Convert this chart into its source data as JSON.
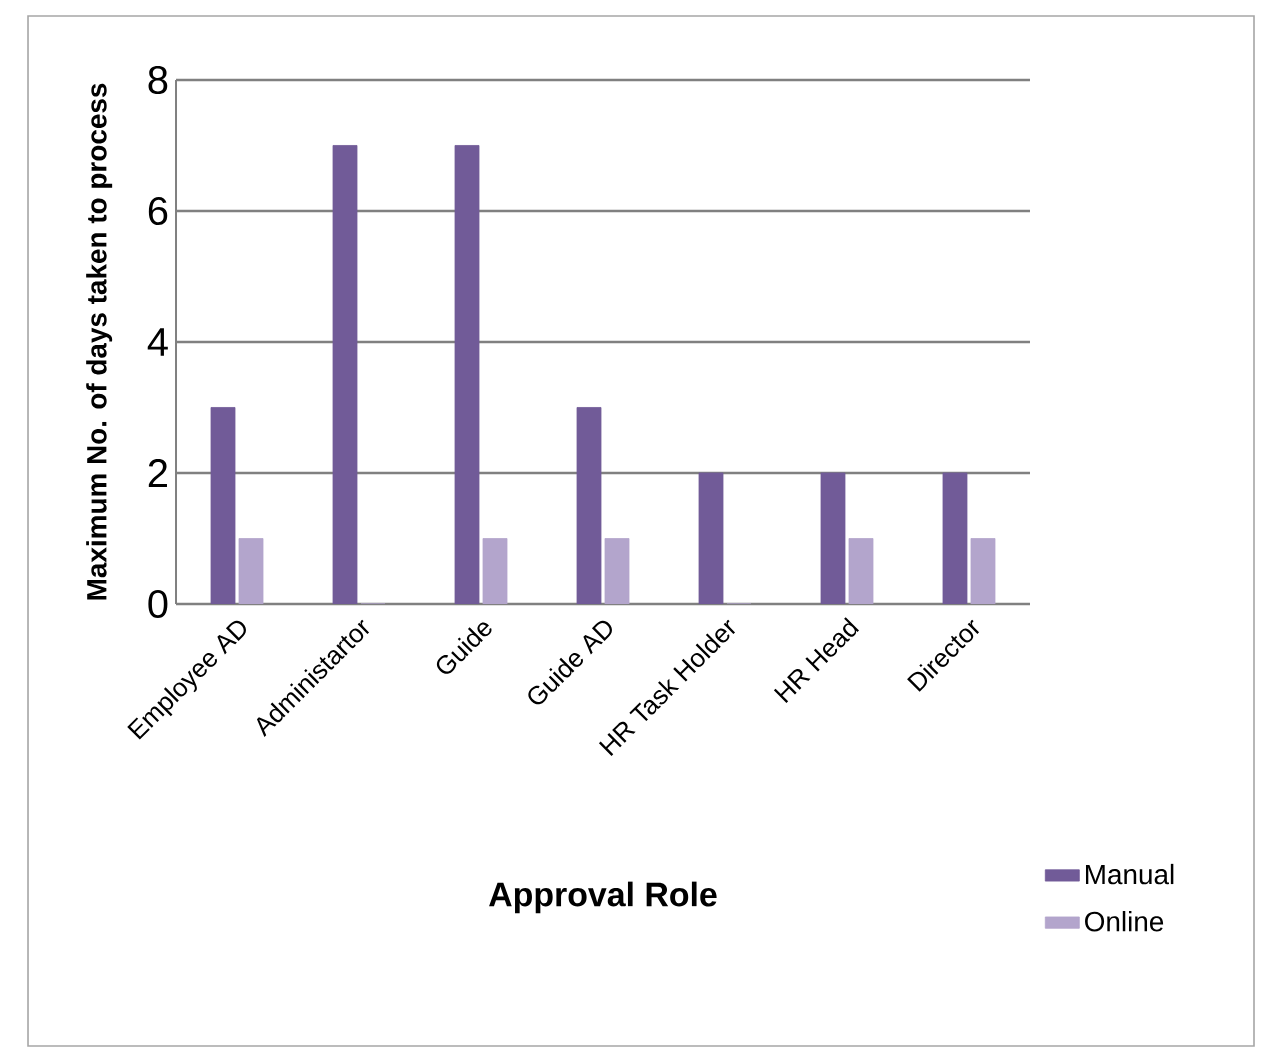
{
  "chart_data": {
    "type": "bar",
    "xlabel": "Approval Role",
    "ylabel": "Maximum No. of days taken to process",
    "categories": [
      "Employee AD",
      "Administartor",
      "Guide",
      "Guide AD",
      "HR Task Holder",
      "HR Head",
      "Director"
    ],
    "series": [
      {
        "name": "Manual",
        "color": "#715b98",
        "values": [
          3,
          7,
          7,
          3,
          2,
          2,
          2
        ]
      },
      {
        "name": "Online",
        "color": "#b3a5cc",
        "values": [
          1,
          0,
          1,
          1,
          0,
          1,
          1
        ]
      }
    ],
    "ylim": [
      0,
      8
    ],
    "yticks": [
      0,
      2,
      4,
      6,
      8
    ],
    "grid": "y",
    "legend": "right"
  }
}
